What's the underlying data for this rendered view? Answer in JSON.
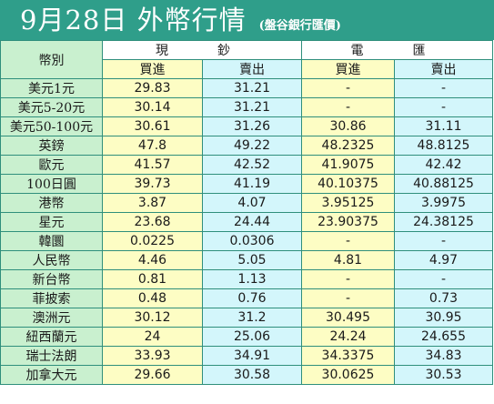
{
  "header": {
    "title": "9月28日 外幣行情",
    "subtitle": "(盤谷銀行匯價)"
  },
  "table": {
    "currency_header": "幣別",
    "groups": [
      "現　鈔",
      "電　匯"
    ],
    "subheaders": [
      "買進",
      "賣出",
      "買進",
      "賣出"
    ],
    "rows": [
      {
        "currency": "美元1元",
        "cash_buy": "29.83",
        "cash_sell": "31.21",
        "tt_buy": "-",
        "tt_sell": "-"
      },
      {
        "currency": "美元5-20元",
        "cash_buy": "30.14",
        "cash_sell": "31.21",
        "tt_buy": "-",
        "tt_sell": "-"
      },
      {
        "currency": "美元50-100元",
        "cash_buy": "30.61",
        "cash_sell": "31.26",
        "tt_buy": "30.86",
        "tt_sell": "31.11"
      },
      {
        "currency": "英鎊",
        "cash_buy": "47.8",
        "cash_sell": "49.22",
        "tt_buy": "48.2325",
        "tt_sell": "48.8125"
      },
      {
        "currency": "歐元",
        "cash_buy": "41.57",
        "cash_sell": "42.52",
        "tt_buy": "41.9075",
        "tt_sell": "42.42"
      },
      {
        "currency": "100日圓",
        "cash_buy": "39.73",
        "cash_sell": "41.19",
        "tt_buy": "40.10375",
        "tt_sell": "40.88125"
      },
      {
        "currency": "港幣",
        "cash_buy": "3.87",
        "cash_sell": "4.07",
        "tt_buy": "3.95125",
        "tt_sell": "3.9975"
      },
      {
        "currency": "星元",
        "cash_buy": "23.68",
        "cash_sell": "24.44",
        "tt_buy": "23.90375",
        "tt_sell": "24.38125"
      },
      {
        "currency": "韓圜",
        "cash_buy": "0.0225",
        "cash_sell": "0.0306",
        "tt_buy": "-",
        "tt_sell": "-"
      },
      {
        "currency": "人民幣",
        "cash_buy": "4.46",
        "cash_sell": "5.05",
        "tt_buy": "4.81",
        "tt_sell": "4.97"
      },
      {
        "currency": "新台幣",
        "cash_buy": "0.81",
        "cash_sell": "1.13",
        "tt_buy": "-",
        "tt_sell": "-"
      },
      {
        "currency": "菲披索",
        "cash_buy": "0.48",
        "cash_sell": "0.76",
        "tt_buy": "-",
        "tt_sell": "0.73"
      },
      {
        "currency": "澳洲元",
        "cash_buy": "30.12",
        "cash_sell": "31.2",
        "tt_buy": "30.495",
        "tt_sell": "30.95"
      },
      {
        "currency": "紐西蘭元",
        "cash_buy": "24",
        "cash_sell": "25.06",
        "tt_buy": "24.24",
        "tt_sell": "24.655"
      },
      {
        "currency": "瑞士法朗",
        "cash_buy": "33.93",
        "cash_sell": "34.91",
        "tt_buy": "34.3375",
        "tt_sell": "34.83"
      },
      {
        "currency": "加拿大元",
        "cash_buy": "29.66",
        "cash_sell": "30.58",
        "tt_buy": "30.0625",
        "tt_sell": "30.53"
      }
    ]
  },
  "colors": {
    "title_bar": "#2f9e8a",
    "currency_column": "#c9f0cf",
    "cash_columns": "#fdfdc4",
    "tt_columns": "#d3f6fb",
    "grid": "#2f8f7c"
  }
}
